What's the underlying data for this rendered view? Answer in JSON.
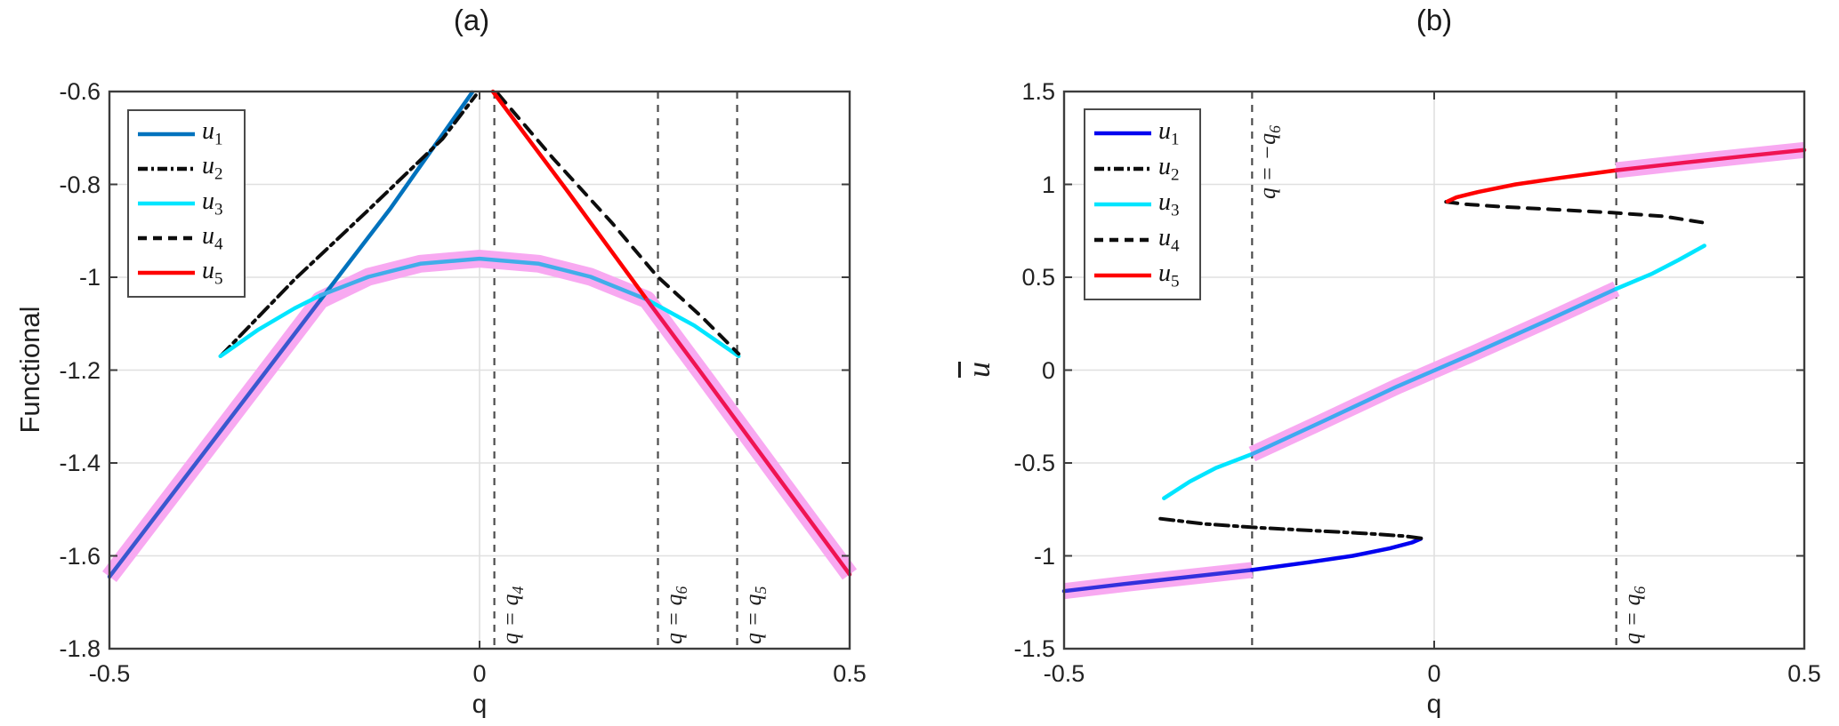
{
  "figure": {
    "background": "#ffffff"
  },
  "style": {
    "band_color": "#F8A9F1",
    "grid_color": "#E0E0E0",
    "frame_color": "#3C3C3C",
    "vline_color": "#4D4D4D",
    "text_color": "#232323"
  },
  "chart_data": [
    {
      "panel": "a",
      "type": "line",
      "title": "(a)",
      "xlabel": "q",
      "ylabel": {
        "text": "Functional",
        "italic": false,
        "overline": false
      },
      "xlim": [
        -0.5,
        0.5
      ],
      "ylim": [
        -1.8,
        -0.6
      ],
      "grid": true,
      "xticks": {
        "values": [
          -0.5,
          0,
          0.5
        ],
        "labels": [
          "-0.5",
          "0",
          "0.5"
        ]
      },
      "yticks": {
        "values": [
          -0.6,
          -0.8,
          -1,
          -1.2,
          -1.4,
          -1.6,
          -1.8
        ],
        "labels": [
          "-0.6",
          "-0.8",
          "-1",
          "-1.2",
          "-1.4",
          "-1.6",
          "-1.8"
        ]
      },
      "legend": {
        "position": "top-left",
        "entries": [
          {
            "base": "u",
            "sub": "1",
            "color": "#0072BD",
            "dash": "solid"
          },
          {
            "base": "u",
            "sub": "2",
            "color": "#0D0D0D",
            "dash": "dashdot"
          },
          {
            "base": "u",
            "sub": "3",
            "color": "#00E5FF",
            "dash": "solid"
          },
          {
            "base": "u",
            "sub": "4",
            "color": "#0D0D0D",
            "dash": "dashed"
          },
          {
            "base": "u",
            "sub": "5",
            "color": "#FE0000",
            "dash": "solid"
          }
        ]
      },
      "vlines": [
        {
          "x": 0.02,
          "prefix": "q = q",
          "sub": "4",
          "label_pos": "bottom"
        },
        {
          "x": 0.241,
          "prefix": "q = q",
          "sub": "6",
          "label_pos": "bottom"
        },
        {
          "x": 0.348,
          "prefix": "q = q",
          "sub": "5",
          "label_pos": "bottom"
        }
      ],
      "band": {
        "width": 20,
        "segments": [
          [
            [
              -0.5,
              -1.645
            ],
            [
              -0.4,
              -1.436
            ],
            [
              -0.3,
              -1.227
            ],
            [
              -0.215,
              -1.049
            ],
            [
              -0.15,
              -0.999
            ],
            [
              -0.08,
              -0.971
            ],
            [
              0,
              -0.96
            ],
            [
              0.08,
              -0.971
            ],
            [
              0.15,
              -0.999
            ],
            [
              0.226,
              -1.048
            ],
            [
              0.3,
              -1.207
            ],
            [
              0.4,
              -1.424
            ],
            [
              0.5,
              -1.64
            ]
          ]
        ]
      },
      "series": [
        {
          "name": "u1",
          "dash": "solid",
          "width": 4.5,
          "segments": [
            {
              "color": "#3A57CE",
              "points": [
                [
                  -0.5,
                  -1.645
                ],
                [
                  -0.4,
                  -1.436
                ],
                [
                  -0.3,
                  -1.227
                ],
                [
                  -0.215,
                  -1.049
                ]
              ]
            },
            {
              "color": "#0072BD",
              "points": [
                [
                  -0.215,
                  -1.049
                ],
                [
                  -0.12,
                  -0.851
                ],
                [
                  -0.01,
                  -0.602
                ]
              ]
            }
          ]
        },
        {
          "name": "u2",
          "dash": "dashdot",
          "width": 4,
          "segments": [
            {
              "color": "#0D0D0D",
              "points": [
                [
                  -0.35,
                  -1.17
                ],
                [
                  -0.25,
                  -1.005
                ],
                [
                  -0.15,
                  -0.855
                ],
                [
                  -0.05,
                  -0.702
                ],
                [
                  -0.005,
                  -0.608
                ]
              ]
            }
          ]
        },
        {
          "name": "u3",
          "dash": "solid",
          "width": 4.5,
          "segments": [
            {
              "color": "#00E5FF",
              "points": [
                [
                  -0.35,
                  -1.17
                ],
                [
                  -0.3,
                  -1.114
                ],
                [
                  -0.25,
                  -1.067
                ],
                [
                  -0.215,
                  -1.039
                ]
              ]
            },
            {
              "color": "#41ADE9",
              "points": [
                [
                  -0.215,
                  -1.039
                ],
                [
                  -0.15,
                  -0.999
                ],
                [
                  -0.08,
                  -0.971
                ],
                [
                  0,
                  -0.96
                ],
                [
                  0.08,
                  -0.971
                ],
                [
                  0.15,
                  -0.999
                ],
                [
                  0.226,
                  -1.048
                ]
              ]
            },
            {
              "color": "#00E5FF",
              "points": [
                [
                  0.226,
                  -1.048
                ],
                [
                  0.29,
                  -1.104
                ],
                [
                  0.35,
                  -1.17
                ]
              ]
            }
          ]
        },
        {
          "name": "u4",
          "dash": "dashed",
          "width": 4,
          "segments": [
            {
              "color": "#0D0D0D",
              "points": [
                [
                  0.025,
                  -0.605
                ],
                [
                  0.1,
                  -0.745
                ],
                [
                  0.18,
                  -0.885
                ],
                [
                  0.24,
                  -0.998
                ],
                [
                  0.3,
                  -1.085
                ],
                [
                  0.35,
                  -1.165
                ]
              ]
            }
          ]
        },
        {
          "name": "u5",
          "dash": "solid",
          "width": 4.5,
          "segments": [
            {
              "color": "#FE0000",
              "points": [
                [
                  0.018,
                  -0.6
                ],
                [
                  0.12,
                  -0.817
                ],
                [
                  0.226,
                  -1.048
                ]
              ]
            },
            {
              "color": "#EF1352",
              "points": [
                [
                  0.226,
                  -1.048
                ],
                [
                  0.3,
                  -1.207
                ],
                [
                  0.4,
                  -1.424
                ],
                [
                  0.5,
                  -1.64
                ]
              ]
            }
          ]
        }
      ]
    },
    {
      "panel": "b",
      "type": "line",
      "title": "(b)",
      "xlabel": "q",
      "ylabel": {
        "text": "u",
        "italic": true,
        "overline": true
      },
      "xlim": [
        -0.5,
        0.5
      ],
      "ylim": [
        -1.5,
        1.5
      ],
      "grid": true,
      "xticks": {
        "values": [
          -0.5,
          0,
          0.5
        ],
        "labels": [
          "-0.5",
          "0",
          "0.5"
        ]
      },
      "yticks": {
        "values": [
          1.5,
          1,
          0.5,
          0,
          -0.5,
          -1,
          -1.5
        ],
        "labels": [
          "1.5",
          "1",
          "0.5",
          "0",
          "-0.5",
          "-1",
          "-1.5"
        ]
      },
      "legend": {
        "position": "top-left",
        "entries": [
          {
            "base": "u",
            "sub": "1",
            "color": "#0202EF",
            "dash": "solid"
          },
          {
            "base": "u",
            "sub": "2",
            "color": "#0D0D0D",
            "dash": "dashdot"
          },
          {
            "base": "u",
            "sub": "3",
            "color": "#00E5FF",
            "dash": "solid"
          },
          {
            "base": "u",
            "sub": "4",
            "color": "#0D0D0D",
            "dash": "dashed"
          },
          {
            "base": "u",
            "sub": "5",
            "color": "#FE0000",
            "dash": "solid"
          }
        ]
      },
      "vlines": [
        {
          "x": -0.246,
          "prefix": "q = −q",
          "sub": "6",
          "label_pos": "top"
        },
        {
          "x": 0.246,
          "prefix": "q = q",
          "sub": "6",
          "label_pos": "bottom"
        }
      ],
      "band": {
        "width": 18,
        "segments": [
          [
            [
              -0.5,
              -1.19
            ],
            [
              -0.42,
              -1.152
            ],
            [
              -0.34,
              -1.117
            ],
            [
              -0.246,
              -1.076
            ]
          ],
          [
            [
              -0.246,
              -0.452
            ],
            [
              -0.15,
              -0.275
            ],
            [
              -0.05,
              -0.088
            ],
            [
              0.05,
              0.084
            ],
            [
              0.15,
              0.262
            ],
            [
              0.246,
              0.438
            ]
          ],
          [
            [
              0.246,
              1.076
            ],
            [
              0.34,
              1.118
            ],
            [
              0.42,
              1.152
            ],
            [
              0.5,
              1.185
            ]
          ]
        ]
      },
      "series": [
        {
          "name": "u1",
          "dash": "solid",
          "width": 4.5,
          "segments": [
            {
              "color": "#3330DC",
              "points": [
                [
                  -0.5,
                  -1.19
                ],
                [
                  -0.42,
                  -1.152
                ],
                [
                  -0.34,
                  -1.117
                ],
                [
                  -0.246,
                  -1.076
                ]
              ]
            },
            {
              "color": "#0202EF",
              "points": [
                [
                  -0.246,
                  -1.076
                ],
                [
                  -0.17,
                  -1.035
                ],
                [
                  -0.11,
                  -1.0
                ],
                [
                  -0.06,
                  -0.96
                ],
                [
                  -0.03,
                  -0.928
                ],
                [
                  -0.018,
                  -0.908
                ]
              ]
            }
          ]
        },
        {
          "name": "u2",
          "dash": "dashdot",
          "width": 4,
          "segments": [
            {
              "color": "#0D0D0D",
              "points": [
                [
                  -0.37,
                  -0.8
                ],
                [
                  -0.31,
                  -0.828
                ],
                [
                  -0.24,
                  -0.848
                ],
                [
                  -0.16,
                  -0.865
                ],
                [
                  -0.09,
                  -0.88
                ],
                [
                  -0.04,
                  -0.894
                ],
                [
                  -0.016,
                  -0.906
                ]
              ]
            }
          ]
        },
        {
          "name": "u3",
          "dash": "solid",
          "width": 4.5,
          "segments": [
            {
              "color": "#00E5FF",
              "points": [
                [
                  -0.365,
                  -0.69
                ],
                [
                  -0.33,
                  -0.6
                ],
                [
                  -0.295,
                  -0.527
                ],
                [
                  -0.246,
                  -0.452
                ]
              ]
            },
            {
              "color": "#3FA9F0",
              "points": [
                [
                  -0.246,
                  -0.452
                ],
                [
                  -0.15,
                  -0.275
                ],
                [
                  -0.05,
                  -0.088
                ],
                [
                  0.05,
                  0.084
                ],
                [
                  0.15,
                  0.262
                ],
                [
                  0.246,
                  0.438
                ]
              ]
            },
            {
              "color": "#00E5FF",
              "points": [
                [
                  0.246,
                  0.438
                ],
                [
                  0.295,
                  0.52
                ],
                [
                  0.33,
                  0.593
                ],
                [
                  0.365,
                  0.67
                ]
              ]
            }
          ]
        },
        {
          "name": "u4",
          "dash": "dashed",
          "width": 4,
          "segments": [
            {
              "color": "#0D0D0D",
              "points": [
                [
                  0.016,
                  0.906
                ],
                [
                  0.04,
                  0.894
                ],
                [
                  0.09,
                  0.88
                ],
                [
                  0.16,
                  0.865
                ],
                [
                  0.24,
                  0.848
                ],
                [
                  0.31,
                  0.828
                ],
                [
                  0.37,
                  0.79
                ]
              ]
            }
          ]
        },
        {
          "name": "u5",
          "dash": "solid",
          "width": 4.5,
          "segments": [
            {
              "color": "#FE0000",
              "points": [
                [
                  0.018,
                  0.908
                ],
                [
                  0.03,
                  0.93
                ],
                [
                  0.06,
                  0.96
                ],
                [
                  0.11,
                  1.0
                ],
                [
                  0.17,
                  1.035
                ],
                [
                  0.246,
                  1.076
                ]
              ]
            },
            {
              "color": "#EF1352",
              "points": [
                [
                  0.246,
                  1.076
                ],
                [
                  0.34,
                  1.118
                ],
                [
                  0.42,
                  1.152
                ],
                [
                  0.5,
                  1.185
                ]
              ]
            }
          ]
        }
      ]
    }
  ]
}
